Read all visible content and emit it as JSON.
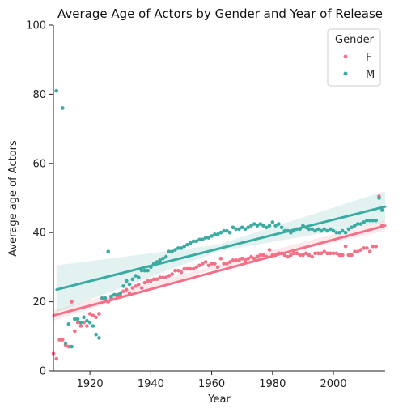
{
  "chart_data": {
    "type": "scatter",
    "title": "Average Age of Actors by Gender and Year of Release",
    "xlabel": "Year",
    "ylabel": "Average age of Actors",
    "xlim": [
      1908,
      2017
    ],
    "ylim": [
      0,
      100
    ],
    "xticks": [
      1920,
      1940,
      1960,
      1980,
      2000
    ],
    "yticks": [
      0,
      20,
      40,
      60,
      80,
      100
    ],
    "grid": false,
    "legend": {
      "title": "Gender",
      "placement": "top-right"
    },
    "series": [
      {
        "name": "F",
        "color": "#f37086",
        "points": [
          [
            1908,
            5
          ],
          [
            1909,
            3.5
          ],
          [
            1910,
            9
          ],
          [
            1911,
            9
          ],
          [
            1912,
            7.5
          ],
          [
            1913,
            7
          ],
          [
            1914,
            20
          ],
          [
            1915,
            11.5
          ],
          [
            1916,
            14
          ],
          [
            1917,
            13
          ],
          [
            1918,
            14
          ],
          [
            1919,
            13
          ],
          [
            1920,
            16.5
          ],
          [
            1921,
            16
          ],
          [
            1922,
            15.5
          ],
          [
            1923,
            16.5
          ],
          [
            1924,
            21
          ],
          [
            1925,
            21
          ],
          [
            1926,
            20
          ],
          [
            1927,
            21
          ],
          [
            1928,
            22
          ],
          [
            1929,
            21.5
          ],
          [
            1930,
            22
          ],
          [
            1931,
            23
          ],
          [
            1932,
            23.5
          ],
          [
            1933,
            22.5
          ],
          [
            1934,
            24
          ],
          [
            1935,
            24.5
          ],
          [
            1936,
            25
          ],
          [
            1937,
            24
          ],
          [
            1938,
            25.5
          ],
          [
            1939,
            26
          ],
          [
            1940,
            26
          ],
          [
            1941,
            26.5
          ],
          [
            1942,
            26.5
          ],
          [
            1943,
            27
          ],
          [
            1944,
            27
          ],
          [
            1945,
            27
          ],
          [
            1946,
            27.5
          ],
          [
            1947,
            28
          ],
          [
            1948,
            29
          ],
          [
            1949,
            29
          ],
          [
            1950,
            28.5
          ],
          [
            1951,
            29.5
          ],
          [
            1952,
            29.5
          ],
          [
            1953,
            29.5
          ],
          [
            1954,
            29.5
          ],
          [
            1955,
            30
          ],
          [
            1956,
            30.5
          ],
          [
            1957,
            31
          ],
          [
            1958,
            31.5
          ],
          [
            1959,
            30.5
          ],
          [
            1960,
            31
          ],
          [
            1961,
            31
          ],
          [
            1962,
            30
          ],
          [
            1963,
            32.5
          ],
          [
            1964,
            31
          ],
          [
            1965,
            31
          ],
          [
            1966,
            31.5
          ],
          [
            1967,
            32
          ],
          [
            1968,
            32
          ],
          [
            1969,
            32
          ],
          [
            1970,
            32.5
          ],
          [
            1971,
            32
          ],
          [
            1972,
            32.5
          ],
          [
            1973,
            33
          ],
          [
            1974,
            32.5
          ],
          [
            1975,
            33
          ],
          [
            1976,
            33.5
          ],
          [
            1977,
            33.5
          ],
          [
            1978,
            33
          ],
          [
            1979,
            35
          ],
          [
            1980,
            33.5
          ],
          [
            1981,
            33.5
          ],
          [
            1982,
            34
          ],
          [
            1983,
            34
          ],
          [
            1984,
            33.5
          ],
          [
            1985,
            33
          ],
          [
            1986,
            33.5
          ],
          [
            1987,
            34
          ],
          [
            1988,
            34
          ],
          [
            1989,
            33.5
          ],
          [
            1990,
            33.5
          ],
          [
            1991,
            34
          ],
          [
            1992,
            33.5
          ],
          [
            1993,
            33
          ],
          [
            1994,
            34
          ],
          [
            1995,
            34
          ],
          [
            1996,
            34
          ],
          [
            1997,
            34.5
          ],
          [
            1998,
            34
          ],
          [
            1999,
            34
          ],
          [
            2000,
            34
          ],
          [
            2001,
            34
          ],
          [
            2002,
            33.5
          ],
          [
            2003,
            33.5
          ],
          [
            2004,
            36
          ],
          [
            2005,
            33.5
          ],
          [
            2006,
            33.5
          ],
          [
            2007,
            34.5
          ],
          [
            2008,
            34.5
          ],
          [
            2009,
            35
          ],
          [
            2010,
            35.5
          ],
          [
            2011,
            35.5
          ],
          [
            2012,
            34.5
          ],
          [
            2013,
            36
          ],
          [
            2014,
            36
          ],
          [
            2015,
            50.5
          ],
          [
            2016,
            42
          ]
        ],
        "fit": {
          "start": [
            1908,
            16
          ],
          "end": [
            2017,
            42
          ],
          "band": [
            [
              1908,
              14.5,
              17.5
            ],
            [
              1960,
              29.2,
              30.2
            ],
            [
              2017,
              40.5,
              43.5
            ]
          ]
        }
      },
      {
        "name": "M",
        "color": "#3aaba2",
        "points": [
          [
            1909,
            81
          ],
          [
            1911,
            76
          ],
          [
            1912,
            8
          ],
          [
            1913,
            13.5
          ],
          [
            1914,
            7
          ],
          [
            1915,
            15
          ],
          [
            1916,
            15
          ],
          [
            1917,
            14
          ],
          [
            1918,
            15.5
          ],
          [
            1919,
            14.5
          ],
          [
            1920,
            14
          ],
          [
            1921,
            13
          ],
          [
            1922,
            10.5
          ],
          [
            1923,
            9.5
          ],
          [
            1924,
            21
          ],
          [
            1925,
            21
          ],
          [
            1926,
            34.5
          ],
          [
            1927,
            21.5
          ],
          [
            1928,
            22
          ],
          [
            1929,
            22
          ],
          [
            1930,
            22.5
          ],
          [
            1931,
            24.5
          ],
          [
            1932,
            26
          ],
          [
            1933,
            25
          ],
          [
            1934,
            26.5
          ],
          [
            1935,
            27.5
          ],
          [
            1936,
            27
          ],
          [
            1937,
            29
          ],
          [
            1938,
            29
          ],
          [
            1939,
            29
          ],
          [
            1940,
            30
          ],
          [
            1941,
            31
          ],
          [
            1942,
            31.5
          ],
          [
            1943,
            32
          ],
          [
            1944,
            32.5
          ],
          [
            1945,
            33
          ],
          [
            1946,
            34.5
          ],
          [
            1947,
            34.5
          ],
          [
            1948,
            35
          ],
          [
            1949,
            35.5
          ],
          [
            1950,
            35.5
          ],
          [
            1951,
            36
          ],
          [
            1952,
            36.5
          ],
          [
            1953,
            37
          ],
          [
            1954,
            37.5
          ],
          [
            1955,
            37.5
          ],
          [
            1956,
            38
          ],
          [
            1957,
            38
          ],
          [
            1958,
            38.5
          ],
          [
            1959,
            38.5
          ],
          [
            1960,
            39
          ],
          [
            1961,
            39.5
          ],
          [
            1962,
            39.5
          ],
          [
            1963,
            40
          ],
          [
            1964,
            40.5
          ],
          [
            1965,
            40.5
          ],
          [
            1966,
            40
          ],
          [
            1967,
            41.5
          ],
          [
            1968,
            41
          ],
          [
            1969,
            41
          ],
          [
            1970,
            41.5
          ],
          [
            1971,
            41
          ],
          [
            1972,
            41.5
          ],
          [
            1973,
            42
          ],
          [
            1974,
            42.5
          ],
          [
            1975,
            42
          ],
          [
            1976,
            42.5
          ],
          [
            1977,
            42
          ],
          [
            1978,
            41.5
          ],
          [
            1979,
            42
          ],
          [
            1980,
            43
          ],
          [
            1981,
            42
          ],
          [
            1982,
            42.5
          ],
          [
            1983,
            41.5
          ],
          [
            1984,
            40.5
          ],
          [
            1985,
            40.5
          ],
          [
            1986,
            40
          ],
          [
            1987,
            40.5
          ],
          [
            1988,
            41
          ],
          [
            1989,
            41
          ],
          [
            1990,
            42
          ],
          [
            1991,
            41.5
          ],
          [
            1992,
            41
          ],
          [
            1993,
            41
          ],
          [
            1994,
            40.5
          ],
          [
            1995,
            41
          ],
          [
            1996,
            40.5
          ],
          [
            1997,
            41
          ],
          [
            1998,
            40.5
          ],
          [
            1999,
            41
          ],
          [
            2000,
            40.5
          ],
          [
            2001,
            40
          ],
          [
            2002,
            40
          ],
          [
            2003,
            40.5
          ],
          [
            2004,
            40
          ],
          [
            2005,
            41
          ],
          [
            2006,
            41.5
          ],
          [
            2007,
            42
          ],
          [
            2008,
            42.5
          ],
          [
            2009,
            42.5
          ],
          [
            2010,
            43
          ],
          [
            2011,
            43.5
          ],
          [
            2012,
            43.5
          ],
          [
            2013,
            43.5
          ],
          [
            2014,
            43.5
          ],
          [
            2015,
            50
          ],
          [
            2016,
            46.5
          ]
        ],
        "fit": {
          "start": [
            1909,
            23.5
          ],
          "end": [
            2017,
            47.5
          ],
          "band": [
            [
              1909,
              17,
              30.5
            ],
            [
              1962,
              34.5,
              36.5
            ],
            [
              2017,
              43,
              52
            ]
          ]
        }
      }
    ]
  }
}
